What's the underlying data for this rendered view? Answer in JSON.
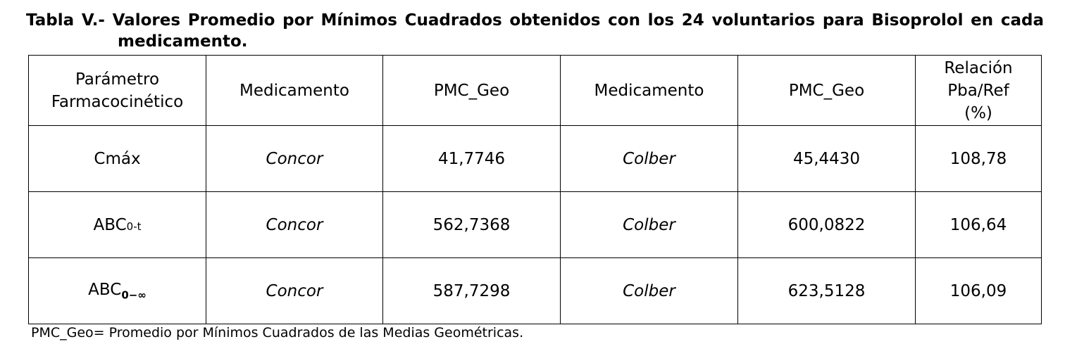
{
  "caption": {
    "line1": "Tabla V.- Valores Promedio por Mínimos Cuadrados obtenidos con los 24 voluntarios para Bisoprolol en cada",
    "line2": "medicamento."
  },
  "table": {
    "headers": [
      {
        "line1": "Parámetro",
        "line2": "Farmacocinético"
      },
      {
        "line1": "Medicamento"
      },
      {
        "line1": "PMC_Geo"
      },
      {
        "line1": "Medicamento"
      },
      {
        "line1": "PMC_Geo"
      },
      {
        "line1": "Relación",
        "line2": "Pba/Ref",
        "line3": "(%)"
      }
    ],
    "rows": [
      {
        "param": "Cmáx",
        "param_sub": "",
        "drug1": "Concor",
        "pmc1": "41,7746",
        "drug2": "Colber",
        "pmc2": "45,4430",
        "ratio": "108,78"
      },
      {
        "param": "ABC",
        "param_sub": "0-t",
        "drug1": "Concor",
        "pmc1": "562,7368",
        "drug2": "Colber",
        "pmc2": "600,0822",
        "ratio": "106,64"
      },
      {
        "param": "ABC",
        "param_sub": "0−∞",
        "drug1": "Concor",
        "pmc1": "587,7298",
        "drug2": "Colber",
        "pmc2": "623,5128",
        "ratio": "106,09"
      }
    ]
  },
  "footnote": "PMC_Geo= Promedio por Mínimos Cuadrados de las Medias Geométricas."
}
